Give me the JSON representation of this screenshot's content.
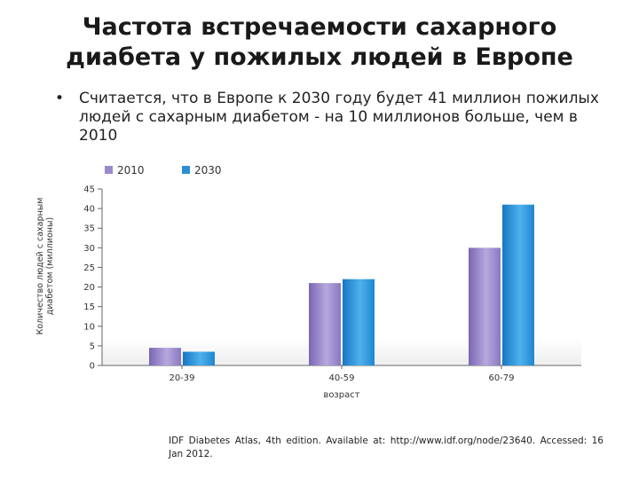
{
  "slide": {
    "title": "Частота встречаемости сахарного диабета у пожилых людей в Европе",
    "bullet_symbol": "•",
    "bullet_text": "Считается, что в Европе к 2030 году будет 41 миллион пожилых людей с сахарным диабетом - на 10 миллионов больше, чем в 2010",
    "source": "IDF Diabetes Atlas, 4th edition. Available at: http://www.idf.org/node/23640. Accessed: 16 Jan 2012."
  },
  "chart_data": {
    "type": "bar",
    "categories": [
      "20-39",
      "40-59",
      "60-79"
    ],
    "series": [
      {
        "name": "2010",
        "values": [
          4.5,
          21,
          30
        ],
        "color": "#9b89c9"
      },
      {
        "name": "2030",
        "values": [
          3.5,
          22,
          41
        ],
        "color": "#2b8fd6"
      }
    ],
    "xlabel": "возраст",
    "ylabel": "Количество людей с сахарным диабетом (миллионы)",
    "ylim": [
      0,
      45
    ],
    "yticks": [
      0,
      5,
      10,
      15,
      20,
      25,
      30,
      35,
      40,
      45
    ],
    "legend_position": "top-left",
    "grid": false
  }
}
